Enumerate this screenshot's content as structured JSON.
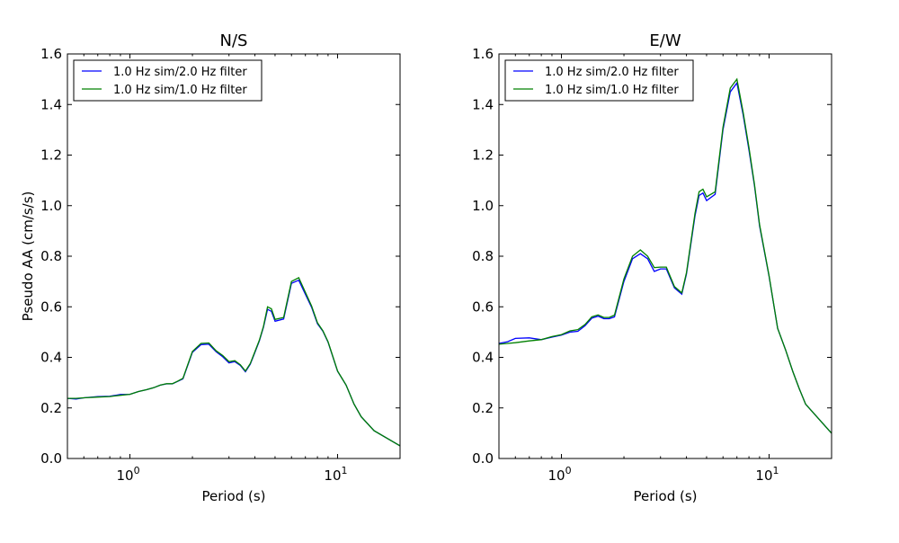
{
  "chart_data": [
    {
      "type": "line",
      "title": "N/S",
      "xlabel": "Period (s)",
      "ylabel": "Pseudo AA (cm/s/s)",
      "xscale": "log",
      "xlim": [
        0.5,
        20
      ],
      "ylim": [
        0,
        1.6
      ],
      "yticks": [
        "0.0",
        "0.2",
        "0.4",
        "0.6",
        "0.8",
        "1.0",
        "1.2",
        "1.4",
        "1.6"
      ],
      "xticks": [
        {
          "value": 1,
          "base": "10",
          "exp": "0"
        },
        {
          "value": 10,
          "base": "10",
          "exp": "1"
        }
      ],
      "grid": false,
      "legend": "top-left",
      "series": [
        {
          "name": "1.0 Hz sim/2.0 Hz filter",
          "color": "#0000ff",
          "x": [
            0.5,
            0.55,
            0.6,
            0.7,
            0.8,
            0.9,
            1.0,
            1.1,
            1.2,
            1.3,
            1.4,
            1.5,
            1.6,
            1.7,
            1.8,
            2.0,
            2.2,
            2.4,
            2.6,
            2.8,
            3.0,
            3.2,
            3.4,
            3.6,
            3.8,
            4.0,
            4.2,
            4.4,
            4.6,
            4.8,
            5.0,
            5.5,
            6.0,
            6.5,
            7.5,
            8.0,
            8.5,
            9.0,
            10,
            11,
            12,
            13,
            15,
            20
          ],
          "y": [
            0.238,
            0.235,
            0.24,
            0.245,
            0.246,
            0.253,
            0.254,
            0.265,
            0.272,
            0.28,
            0.29,
            0.295,
            0.295,
            0.305,
            0.315,
            0.42,
            0.45,
            0.452,
            0.422,
            0.402,
            0.378,
            0.383,
            0.368,
            0.343,
            0.373,
            0.42,
            0.465,
            0.52,
            0.59,
            0.582,
            0.543,
            0.552,
            0.693,
            0.705,
            0.598,
            0.533,
            0.503,
            0.46,
            0.345,
            0.29,
            0.215,
            0.165,
            0.11,
            0.05
          ]
        },
        {
          "name": "1.0 Hz sim/1.0 Hz filter",
          "color": "#008000",
          "x": [
            0.5,
            0.55,
            0.6,
            0.7,
            0.8,
            0.9,
            1.0,
            1.1,
            1.2,
            1.3,
            1.4,
            1.5,
            1.6,
            1.7,
            1.8,
            2.0,
            2.2,
            2.4,
            2.6,
            2.8,
            3.0,
            3.2,
            3.4,
            3.6,
            3.8,
            4.0,
            4.2,
            4.4,
            4.6,
            4.8,
            5.0,
            5.5,
            6.0,
            6.5,
            7.5,
            8.0,
            8.5,
            9.0,
            10,
            11,
            12,
            13,
            15,
            20
          ],
          "y": [
            0.238,
            0.238,
            0.24,
            0.243,
            0.245,
            0.25,
            0.254,
            0.265,
            0.272,
            0.28,
            0.29,
            0.296,
            0.296,
            0.306,
            0.317,
            0.423,
            0.455,
            0.457,
            0.426,
            0.407,
            0.383,
            0.387,
            0.371,
            0.346,
            0.376,
            0.423,
            0.468,
            0.523,
            0.6,
            0.592,
            0.55,
            0.558,
            0.7,
            0.715,
            0.603,
            0.537,
            0.505,
            0.462,
            0.346,
            0.29,
            0.215,
            0.165,
            0.11,
            0.05
          ]
        }
      ]
    },
    {
      "type": "line",
      "title": "E/W",
      "xlabel": "Period (s)",
      "ylabel": "",
      "xscale": "log",
      "xlim": [
        0.5,
        20
      ],
      "ylim": [
        0,
        1.6
      ],
      "yticks": [
        "0.0",
        "0.2",
        "0.4",
        "0.6",
        "0.8",
        "1.0",
        "1.2",
        "1.4",
        "1.6"
      ],
      "xticks": [
        {
          "value": 1,
          "base": "10",
          "exp": "0"
        },
        {
          "value": 10,
          "base": "10",
          "exp": "1"
        }
      ],
      "grid": false,
      "legend": "top-left",
      "series": [
        {
          "name": "1.0 Hz sim/2.0 Hz filter",
          "color": "#0000ff",
          "x": [
            0.5,
            0.55,
            0.6,
            0.7,
            0.8,
            0.9,
            1.0,
            1.1,
            1.2,
            1.3,
            1.4,
            1.5,
            1.6,
            1.7,
            1.8,
            2.0,
            2.2,
            2.4,
            2.6,
            2.8,
            3.0,
            3.2,
            3.5,
            3.8,
            4.0,
            4.4,
            4.6,
            4.8,
            5.0,
            5.5,
            6.0,
            6.5,
            7.0,
            7.5,
            8.0,
            8.5,
            9.0,
            10,
            11,
            12,
            13,
            14,
            15,
            20
          ],
          "y": [
            0.455,
            0.462,
            0.475,
            0.477,
            0.47,
            0.48,
            0.488,
            0.5,
            0.503,
            0.525,
            0.555,
            0.563,
            0.553,
            0.553,
            0.56,
            0.7,
            0.79,
            0.81,
            0.79,
            0.74,
            0.75,
            0.75,
            0.675,
            0.65,
            0.73,
            0.96,
            1.04,
            1.05,
            1.02,
            1.045,
            1.3,
            1.45,
            1.485,
            1.36,
            1.22,
            1.08,
            0.92,
            0.72,
            0.515,
            0.43,
            0.345,
            0.275,
            0.215,
            0.1
          ]
        },
        {
          "name": "1.0 Hz sim/1.0 Hz filter",
          "color": "#008000",
          "x": [
            0.5,
            0.55,
            0.6,
            0.7,
            0.8,
            0.9,
            1.0,
            1.1,
            1.2,
            1.3,
            1.4,
            1.5,
            1.6,
            1.7,
            1.8,
            2.0,
            2.2,
            2.4,
            2.6,
            2.8,
            3.0,
            3.2,
            3.5,
            3.8,
            4.0,
            4.4,
            4.6,
            4.8,
            5.0,
            5.5,
            6.0,
            6.5,
            7.0,
            7.5,
            8.0,
            8.5,
            9.0,
            10,
            11,
            12,
            13,
            14,
            15,
            20
          ],
          "y": [
            0.452,
            0.455,
            0.458,
            0.465,
            0.47,
            0.482,
            0.49,
            0.505,
            0.51,
            0.53,
            0.56,
            0.568,
            0.558,
            0.558,
            0.567,
            0.71,
            0.8,
            0.825,
            0.8,
            0.755,
            0.757,
            0.757,
            0.68,
            0.655,
            0.735,
            0.97,
            1.055,
            1.065,
            1.035,
            1.055,
            1.31,
            1.465,
            1.5,
            1.37,
            1.23,
            1.085,
            0.925,
            0.722,
            0.515,
            0.43,
            0.345,
            0.275,
            0.215,
            0.1
          ]
        }
      ]
    }
  ]
}
